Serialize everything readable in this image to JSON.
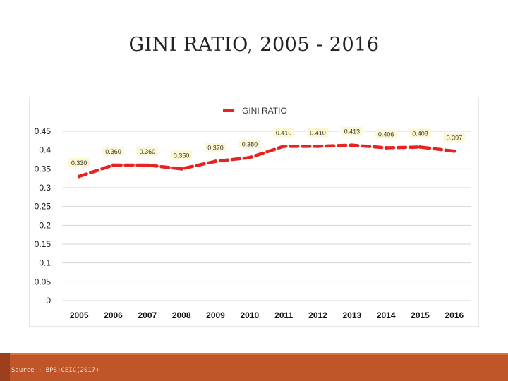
{
  "slide": {
    "title": "GINI RATIO, 2005 - 2016",
    "source": "Source : BPS;CEIC(2017)"
  },
  "colors": {
    "series": "#e8231f",
    "label_bg": "#fdf7d2",
    "band": "#c0552a"
  },
  "chart_data": {
    "type": "line",
    "title": "",
    "xlabel": "",
    "ylabel": "",
    "ylim": [
      0,
      0.45
    ],
    "yticks": [
      "0",
      "0.05",
      "0.1",
      "0.15",
      "0.2",
      "0.25",
      "0.3",
      "0.35",
      "0.4",
      "0.45"
    ],
    "ytick_values": [
      0,
      0.05,
      0.1,
      0.15,
      0.2,
      0.25,
      0.3,
      0.35,
      0.4,
      0.45
    ],
    "categories": [
      "2005",
      "2006",
      "2007",
      "2008",
      "2009",
      "2010",
      "2011",
      "2012",
      "2013",
      "2014",
      "2015",
      "2016"
    ],
    "series": [
      {
        "name": "GINI RATIO",
        "values": [
          0.33,
          0.36,
          0.36,
          0.35,
          0.37,
          0.38,
          0.41,
          0.41,
          0.413,
          0.406,
          0.408,
          0.397
        ],
        "labels": [
          "0.330",
          "0.360",
          "0.360",
          "0.350",
          "0.370",
          "0.380",
          "0.410",
          "0.410",
          "0.413",
          "0.406",
          "0.408",
          "0.397"
        ]
      }
    ],
    "grid": true,
    "legend": "top-center",
    "line_style": "dashed"
  }
}
